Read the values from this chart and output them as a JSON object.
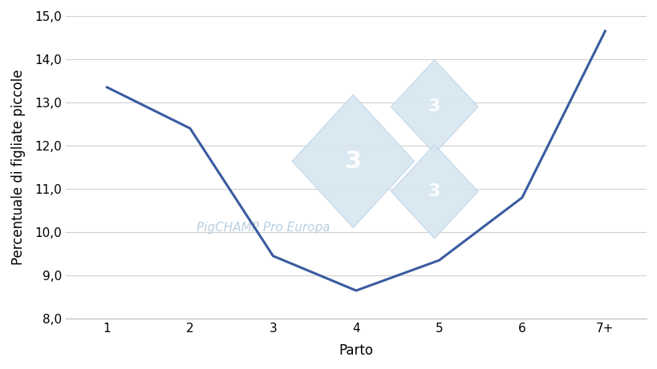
{
  "x_labels": [
    "1",
    "2",
    "3",
    "4",
    "5",
    "6",
    "7+"
  ],
  "x_values": [
    1,
    2,
    3,
    4,
    5,
    6,
    7
  ],
  "y_values": [
    13.35,
    12.4,
    9.45,
    8.65,
    9.35,
    10.8,
    14.65
  ],
  "xlabel": "Parto",
  "ylabel": "Percentuale di figliate piccole",
  "ylim": [
    8.0,
    15.0
  ],
  "yticks": [
    8.0,
    9.0,
    10.0,
    11.0,
    12.0,
    13.0,
    14.0,
    15.0
  ],
  "line_color": "#3A5BA0",
  "line_width": 2.2,
  "watermark_text": "PigCHAMP Pro Europa",
  "watermark_color": "#b8cfe0",
  "watermark_text_color": "#b8cfe0",
  "diamond_fill": "#d6e6f0",
  "diamond_edge": "#c0d5e8",
  "background_color": "#ffffff",
  "grid_color": "#d0d0d0",
  "tick_label_fontsize": 11,
  "axis_label_fontsize": 12
}
